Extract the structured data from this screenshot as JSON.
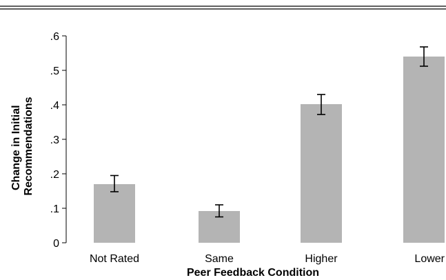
{
  "chart_data": {
    "type": "bar",
    "categories": [
      "Not Rated",
      "Same",
      "Higher",
      "Lower"
    ],
    "values": [
      0.17,
      0.092,
      0.402,
      0.54
    ],
    "error_bars": [
      {
        "low": 0.148,
        "high": 0.195
      },
      {
        "low": 0.075,
        "high": 0.11
      },
      {
        "low": 0.372,
        "high": 0.43
      },
      {
        "low": 0.512,
        "high": 0.568
      }
    ],
    "title": "",
    "xlabel": "Peer Feedback Condition",
    "ylabel_lines": [
      "Change in Initial",
      "Recommendations"
    ],
    "ylim": [
      0,
      0.6
    ],
    "yticks": [
      {
        "value": 0,
        "label": "0"
      },
      {
        "value": 0.1,
        "label": ".1"
      },
      {
        "value": 0.2,
        "label": ".2"
      },
      {
        "value": 0.3,
        "label": ".3"
      },
      {
        "value": 0.4,
        "label": ".4"
      },
      {
        "value": 0.5,
        "label": ".5"
      },
      {
        "value": 0.6,
        "label": ".6"
      }
    ],
    "bar_color": "#b4b4b4",
    "grid": false
  }
}
